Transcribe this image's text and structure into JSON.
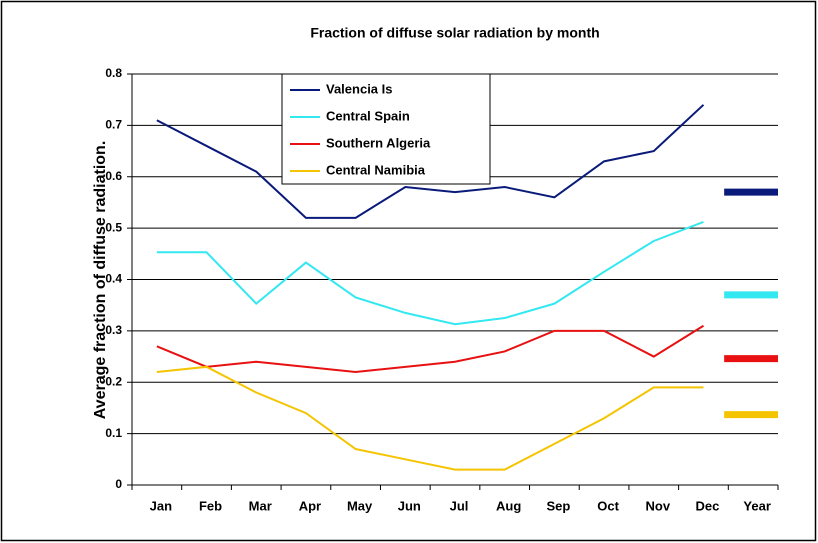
{
  "chart_data": {
    "type": "line",
    "title": "Fraction of diffuse solar radiation by month",
    "y_label": "Average fraction of diffuse radiation.",
    "categories": [
      "Jan",
      "Feb",
      "Mar",
      "Apr",
      "May",
      "Jun",
      "Jul",
      "Aug",
      "Sep",
      "Oct",
      "Nov",
      "Dec",
      "Year"
    ],
    "series": [
      {
        "name": "Valencia Is",
        "color": "#0a1a7a",
        "values": [
          0.71,
          0.66,
          0.61,
          0.52,
          0.52,
          0.58,
          0.57,
          0.58,
          0.56,
          0.63,
          0.65,
          0.74,
          0.57
        ]
      },
      {
        "name": "Central Spain",
        "color": "#33e8f0",
        "values": [
          0.453,
          0.453,
          0.353,
          0.433,
          0.365,
          0.335,
          0.313,
          0.325,
          0.353,
          0.415,
          0.475,
          0.512,
          0.37
        ]
      },
      {
        "name": "Southern Algeria",
        "color": "#e81010",
        "values": [
          0.27,
          0.23,
          0.24,
          0.23,
          0.22,
          0.23,
          0.24,
          0.26,
          0.3,
          0.3,
          0.25,
          0.31,
          0.246
        ]
      },
      {
        "name": "Central Namibia",
        "color": "#f5c400",
        "values": [
          0.22,
          0.23,
          0.18,
          0.14,
          0.07,
          0.05,
          0.03,
          0.03,
          0.08,
          0.13,
          0.19,
          0.19,
          0.137
        ]
      }
    ],
    "ylim": [
      0,
      0.8
    ],
    "yticks": [
      0,
      0.1,
      0.2,
      0.3,
      0.4,
      0.5,
      0.6,
      0.7,
      0.8
    ],
    "grid": true
  }
}
